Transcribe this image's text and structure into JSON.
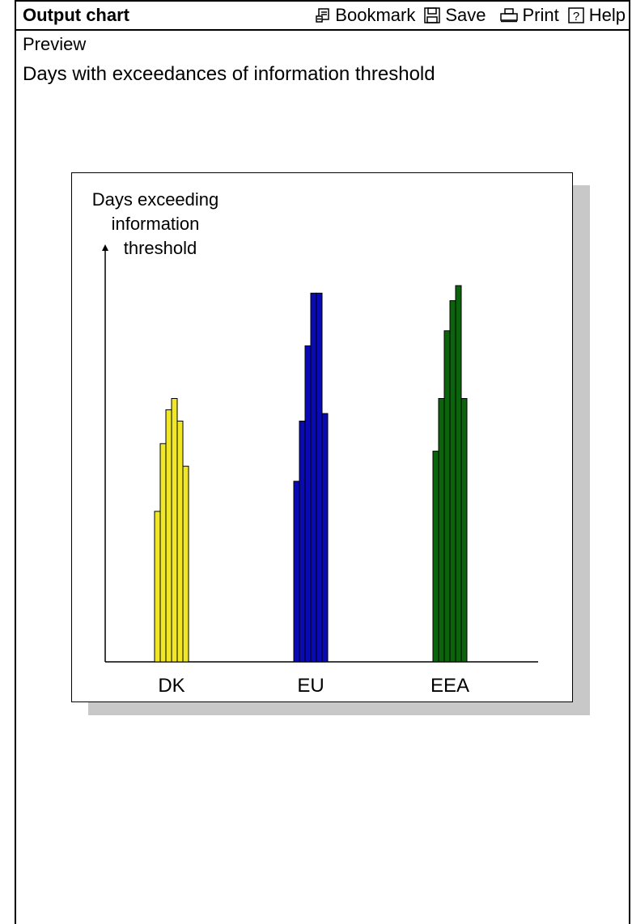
{
  "toolbar": {
    "title": "Output chart",
    "bookmark_label": "Bookmark",
    "save_label": "Save",
    "print_label": "Print",
    "help_label": "Help"
  },
  "preview_label": "Preview",
  "chart_title": "Days with exceedances of information threshold",
  "chart_data": {
    "type": "bar",
    "ylabel_lines": [
      "Days exceeding",
      "information",
      "threshold"
    ],
    "categories": [
      "DK",
      "EU",
      "EEA"
    ],
    "colors": [
      "#f0e826",
      "#0a0ab4",
      "#0b640b"
    ],
    "groups": [
      {
        "name": "DK",
        "values": [
          0.4,
          0.58,
          0.67,
          0.7,
          0.64,
          0.52
        ]
      },
      {
        "name": "EU",
        "values": [
          0.48,
          0.64,
          0.84,
          0.98,
          0.98,
          0.66
        ]
      },
      {
        "name": "EEA",
        "values": [
          0.56,
          0.7,
          0.88,
          0.96,
          1.0,
          0.7
        ]
      }
    ],
    "grid": false,
    "legend": "none"
  }
}
